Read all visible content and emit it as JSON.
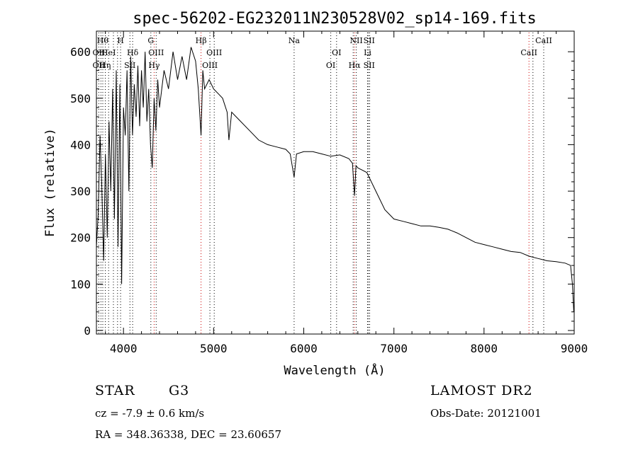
{
  "chart_data": {
    "type": "line",
    "title": "spec-56202-EG232011N230528V02_sp14-169.fits",
    "xlabel": "Wavelength (Å)",
    "ylabel": "Flux (relative)",
    "xlim": [
      3700,
      9000
    ],
    "ylim": [
      0,
      620
    ],
    "xticks": [
      4000,
      5000,
      6000,
      7000,
      8000,
      9000
    ],
    "yticks": [
      0,
      100,
      200,
      300,
      400,
      500,
      600
    ],
    "grid": false,
    "series": [
      {
        "x": [
          3700,
          3720,
          3740,
          3760,
          3780,
          3800,
          3820,
          3840,
          3860,
          3880,
          3900,
          3920,
          3940,
          3960,
          3980,
          4000,
          4020,
          4040,
          4060,
          4080,
          4100,
          4120,
          4140,
          4160,
          4180,
          4200,
          4220,
          4240,
          4260,
          4280,
          4300,
          4320,
          4340,
          4360,
          4380,
          4400,
          4450,
          4500,
          4550,
          4600,
          4650,
          4700,
          4750,
          4800,
          4830,
          4861,
          4880,
          4900,
          4950,
          5000,
          5050,
          5100,
          5150,
          5170,
          5200,
          5300,
          5400,
          5500,
          5600,
          5700,
          5800,
          5850,
          5893,
          5920,
          6000,
          6100,
          6200,
          6300,
          6400,
          6500,
          6540,
          6563,
          6580,
          6600,
          6700,
          6800,
          6900,
          7000,
          7100,
          7200,
          7300,
          7400,
          7500,
          7600,
          7700,
          7800,
          7900,
          8000,
          8100,
          8200,
          8300,
          8400,
          8500,
          8600,
          8700,
          8800,
          8900,
          8960,
          8980,
          8995
        ],
        "y": [
          180,
          250,
          420,
          310,
          150,
          380,
          200,
          450,
          300,
          520,
          240,
          560,
          180,
          530,
          100,
          480,
          420,
          560,
          300,
          590,
          420,
          530,
          460,
          570,
          440,
          560,
          480,
          600,
          450,
          520,
          400,
          350,
          500,
          430,
          540,
          480,
          560,
          520,
          600,
          540,
          590,
          540,
          610,
          580,
          520,
          420,
          560,
          520,
          540,
          520,
          510,
          500,
          470,
          410,
          470,
          450,
          430,
          410,
          400,
          395,
          390,
          380,
          330,
          380,
          385,
          385,
          380,
          375,
          378,
          370,
          360,
          290,
          355,
          350,
          340,
          300,
          260,
          240,
          235,
          230,
          225,
          225,
          222,
          218,
          210,
          200,
          190,
          185,
          180,
          175,
          170,
          168,
          160,
          155,
          150,
          148,
          145,
          140,
          100,
          40
        ]
      }
    ],
    "line_labels": [
      {
        "wavelength": 3770,
        "row": 1,
        "text": "Hθ",
        "color": "#000000"
      },
      {
        "wavelength": 3727,
        "row": 2,
        "text": "OII",
        "color": "#000000"
      },
      {
        "wavelength": 3835,
        "row": 2,
        "text": "HeI",
        "color": "#000000"
      },
      {
        "wavelength": 3727,
        "row": 3,
        "text": "OII",
        "color": "#000000"
      },
      {
        "wavelength": 3797,
        "row": 3,
        "text": "Hη",
        "color": "#000000"
      },
      {
        "wavelength": 3968,
        "row": 1,
        "text": "H",
        "color": "#000000"
      },
      {
        "wavelength": 4102,
        "row": 2,
        "text": "Hδ",
        "color": "#000000"
      },
      {
        "wavelength": 4072,
        "row": 3,
        "text": "SII",
        "color": "#000000"
      },
      {
        "wavelength": 4304,
        "row": 1,
        "text": "G",
        "color": "#000000"
      },
      {
        "wavelength": 4363,
        "row": 2,
        "text": "OIII",
        "color": "#000000"
      },
      {
        "wavelength": 4340,
        "row": 3,
        "text": "Hγ",
        "color": "#000000"
      },
      {
        "wavelength": 4861,
        "row": 1,
        "text": "Hβ",
        "color": "#000000"
      },
      {
        "wavelength": 5007,
        "row": 2,
        "text": "OIII",
        "color": "#000000"
      },
      {
        "wavelength": 4959,
        "row": 3,
        "text": "OIII",
        "color": "#000000"
      },
      {
        "wavelength": 5893,
        "row": 1,
        "text": "Na",
        "color": "#000000"
      },
      {
        "wavelength": 6583,
        "row": 1,
        "text": "NII",
        "color": "#000000"
      },
      {
        "wavelength": 6725,
        "row": 1,
        "text": "SII",
        "color": "#000000"
      },
      {
        "wavelength": 6364,
        "row": 2,
        "text": "OI",
        "color": "#000000"
      },
      {
        "wavelength": 6708,
        "row": 2,
        "text": "Li",
        "color": "#000000"
      },
      {
        "wavelength": 6300,
        "row": 3,
        "text": "OI",
        "color": "#000000"
      },
      {
        "wavelength": 6563,
        "row": 3,
        "text": "Hα",
        "color": "#000000"
      },
      {
        "wavelength": 6725,
        "row": 3,
        "text": "SII",
        "color": "#000000"
      },
      {
        "wavelength": 8662,
        "row": 1,
        "text": "CaII",
        "color": "#000000"
      },
      {
        "wavelength": 8498,
        "row": 2,
        "text": "CaII",
        "color": "#000000"
      }
    ],
    "line_markers": [
      {
        "wavelength": 3727,
        "color": "#000000"
      },
      {
        "wavelength": 3750,
        "color": "#000000"
      },
      {
        "wavelength": 3771,
        "color": "#000000"
      },
      {
        "wavelength": 3798,
        "color": "#000000"
      },
      {
        "wavelength": 3835,
        "color": "#000000"
      },
      {
        "wavelength": 3889,
        "color": "#000000"
      },
      {
        "wavelength": 3934,
        "color": "#000000"
      },
      {
        "wavelength": 3968,
        "color": "#000000"
      },
      {
        "wavelength": 4072,
        "color": "#000000"
      },
      {
        "wavelength": 4102,
        "color": "#000000"
      },
      {
        "wavelength": 4304,
        "color": "#000000"
      },
      {
        "wavelength": 4340,
        "color": "#cc0000"
      },
      {
        "wavelength": 4363,
        "color": "#000000"
      },
      {
        "wavelength": 4861,
        "color": "#cc0000"
      },
      {
        "wavelength": 4959,
        "color": "#000000"
      },
      {
        "wavelength": 5007,
        "color": "#000000"
      },
      {
        "wavelength": 5893,
        "color": "#000000"
      },
      {
        "wavelength": 6300,
        "color": "#000000"
      },
      {
        "wavelength": 6364,
        "color": "#000000"
      },
      {
        "wavelength": 6548,
        "color": "#000000"
      },
      {
        "wavelength": 6563,
        "color": "#cc0000"
      },
      {
        "wavelength": 6583,
        "color": "#000000"
      },
      {
        "wavelength": 6708,
        "color": "#000000"
      },
      {
        "wavelength": 6717,
        "color": "#000000"
      },
      {
        "wavelength": 6731,
        "color": "#000000"
      },
      {
        "wavelength": 8498,
        "color": "#cc0000"
      },
      {
        "wavelength": 8542,
        "color": "#000000"
      },
      {
        "wavelength": 8662,
        "color": "#000000"
      }
    ]
  },
  "info": {
    "class_type": "STAR",
    "subclass": "G3",
    "survey": "LAMOST DR2",
    "redshift": "cz = -7.9 ± 0.6 km/s",
    "obs_date": "Obs-Date: 20121001",
    "coords": "RA = 348.36338, DEC =  23.60657"
  }
}
